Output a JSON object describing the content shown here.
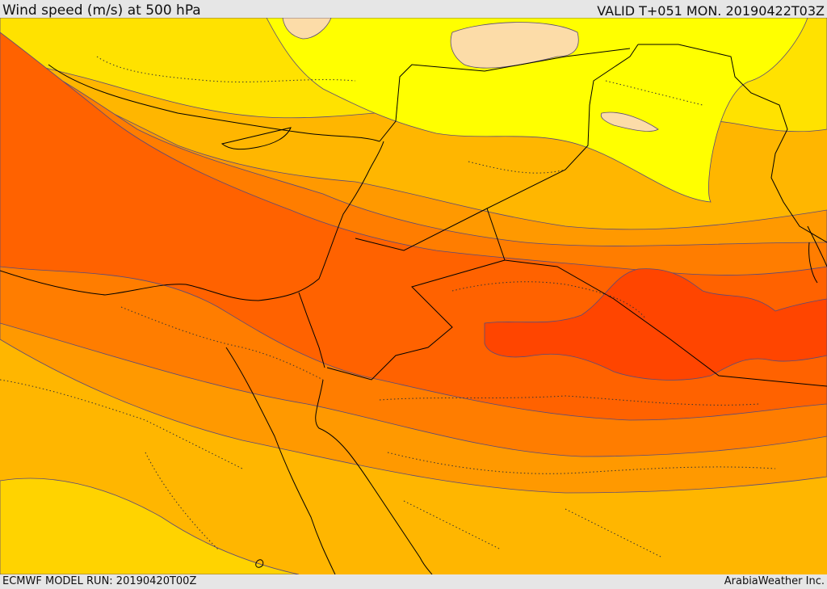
{
  "header": {
    "title": "Wind speed (m/s) at 500 hPa",
    "valid_time": "VALID T+051 MON. 20190422T03Z"
  },
  "footer": {
    "model_run": "ECMWF MODEL RUN: 20190420T00Z",
    "credit": "ArabiaWeather Inc."
  },
  "map": {
    "field": "wind-speed-500hPa",
    "fill_colors": {
      "pale": "#fcdca8",
      "yellow": "#ffff00",
      "light_gold": "#ffe200",
      "gold": "#ffd300",
      "amber": "#ffb600",
      "orange": "#ff9900",
      "dark_orange": "#ff7d00",
      "red_orange": "#ff6200",
      "red": "#ff4500"
    },
    "contour_color": "#5a4a7a",
    "border_color": "#000000"
  }
}
